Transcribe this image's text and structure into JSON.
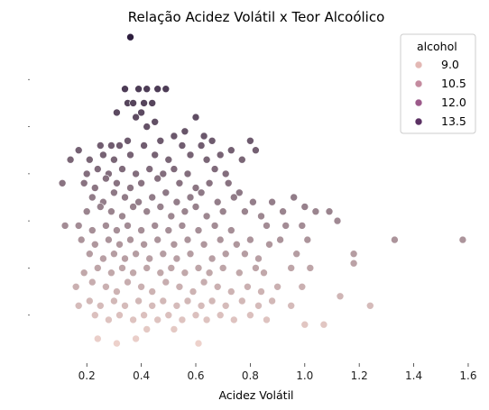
{
  "chart_data": {
    "type": "scatter",
    "title": "Relação Acidez Volátil x Teor Alcoólico",
    "xlabel": "Acidez Volátil",
    "ylabel": "",
    "xlim": [
      0.08,
      1.62
    ],
    "ylim": [
      8.0,
      15.0
    ],
    "x_ticks": [
      "0.2",
      "0.4",
      "0.6",
      "0.8",
      "1.0",
      "1.2",
      "1.4",
      "1.6"
    ],
    "y_ticks_labeled": false,
    "grid": false,
    "hue": "alcohol",
    "color_low": "#edd1cb",
    "color_high": "#2d1e3e",
    "hue_range": [
      8.4,
      14.9
    ],
    "legend": {
      "position": "top-right",
      "title": "alcohol",
      "entries": [
        {
          "label": "9.0",
          "value": 9.0,
          "color": "#e3b8b4"
        },
        {
          "label": "10.5",
          "value": 10.5,
          "color": "#c48b9f"
        },
        {
          "label": "12.0",
          "value": 12.0,
          "color": "#9c5a8a"
        },
        {
          "label": "13.5",
          "value": 13.5,
          "color": "#5b3163"
        }
      ]
    },
    "points": [
      [
        0.36,
        14.9
      ],
      [
        0.24,
        8.5
      ],
      [
        0.31,
        8.4
      ],
      [
        0.38,
        8.5
      ],
      [
        0.42,
        8.7
      ],
      [
        0.52,
        8.7
      ],
      [
        0.61,
        8.4
      ],
      [
        0.39,
        13.8
      ],
      [
        0.42,
        13.8
      ],
      [
        0.46,
        13.8
      ],
      [
        0.49,
        13.8
      ],
      [
        0.34,
        13.8
      ],
      [
        0.35,
        13.5
      ],
      [
        0.37,
        13.5
      ],
      [
        0.41,
        13.5
      ],
      [
        0.44,
        13.5
      ],
      [
        0.31,
        13.3
      ],
      [
        0.38,
        13.2
      ],
      [
        0.4,
        13.3
      ],
      [
        0.45,
        13.1
      ],
      [
        0.6,
        13.2
      ],
      [
        0.42,
        13.0
      ],
      [
        0.52,
        12.8
      ],
      [
        0.56,
        12.9
      ],
      [
        0.63,
        12.8
      ],
      [
        0.17,
        12.5
      ],
      [
        0.25,
        12.6
      ],
      [
        0.29,
        12.6
      ],
      [
        0.32,
        12.6
      ],
      [
        0.35,
        12.7
      ],
      [
        0.41,
        12.6
      ],
      [
        0.47,
        12.7
      ],
      [
        0.55,
        12.6
      ],
      [
        0.62,
        12.6
      ],
      [
        0.66,
        12.7
      ],
      [
        0.73,
        12.5
      ],
      [
        0.8,
        12.7
      ],
      [
        0.82,
        12.5
      ],
      [
        0.14,
        12.3
      ],
      [
        0.21,
        12.3
      ],
      [
        0.26,
        12.4
      ],
      [
        0.3,
        12.3
      ],
      [
        0.36,
        12.4
      ],
      [
        0.45,
        12.4
      ],
      [
        0.5,
        12.3
      ],
      [
        0.58,
        12.4
      ],
      [
        0.64,
        12.3
      ],
      [
        0.69,
        12.4
      ],
      [
        0.77,
        12.3
      ],
      [
        0.2,
        12.0
      ],
      [
        0.24,
        12.1
      ],
      [
        0.28,
        12.0
      ],
      [
        0.33,
        12.1
      ],
      [
        0.38,
        12.0
      ],
      [
        0.43,
        12.1
      ],
      [
        0.48,
        12.0
      ],
      [
        0.52,
        12.1
      ],
      [
        0.57,
        12.0
      ],
      [
        0.67,
        12.1
      ],
      [
        0.71,
        12.0
      ],
      [
        0.11,
        11.8
      ],
      [
        0.19,
        11.8
      ],
      [
        0.23,
        11.7
      ],
      [
        0.27,
        11.9
      ],
      [
        0.31,
        11.8
      ],
      [
        0.36,
        11.7
      ],
      [
        0.4,
        11.8
      ],
      [
        0.46,
        11.9
      ],
      [
        0.54,
        11.8
      ],
      [
        0.6,
        11.7
      ],
      [
        0.65,
        11.8
      ],
      [
        0.72,
        11.8
      ],
      [
        0.76,
        11.6
      ],
      [
        0.22,
        11.5
      ],
      [
        0.26,
        11.4
      ],
      [
        0.3,
        11.6
      ],
      [
        0.34,
        11.5
      ],
      [
        0.39,
        11.4
      ],
      [
        0.44,
        11.5
      ],
      [
        0.49,
        11.6
      ],
      [
        0.53,
        11.4
      ],
      [
        0.58,
        11.5
      ],
      [
        0.62,
        11.6
      ],
      [
        0.68,
        11.4
      ],
      [
        0.74,
        11.5
      ],
      [
        0.81,
        11.4
      ],
      [
        0.88,
        11.4
      ],
      [
        0.96,
        11.5
      ],
      [
        0.2,
        11.2
      ],
      [
        0.25,
        11.3
      ],
      [
        0.29,
        11.2
      ],
      [
        0.33,
        11.1
      ],
      [
        0.37,
        11.3
      ],
      [
        0.42,
        11.2
      ],
      [
        0.47,
        11.3
      ],
      [
        0.51,
        11.1
      ],
      [
        0.56,
        11.2
      ],
      [
        0.6,
        11.3
      ],
      [
        0.64,
        11.1
      ],
      [
        0.7,
        11.2
      ],
      [
        0.78,
        11.2
      ],
      [
        0.84,
        11.1
      ],
      [
        0.92,
        11.2
      ],
      [
        1.0,
        11.3
      ],
      [
        1.04,
        11.2
      ],
      [
        1.09,
        11.2
      ],
      [
        0.12,
        10.9
      ],
      [
        0.17,
        10.9
      ],
      [
        0.22,
        10.8
      ],
      [
        0.27,
        10.9
      ],
      [
        0.31,
        10.8
      ],
      [
        0.35,
        10.9
      ],
      [
        0.4,
        10.8
      ],
      [
        0.45,
        10.9
      ],
      [
        0.5,
        10.8
      ],
      [
        0.55,
        10.9
      ],
      [
        0.61,
        10.8
      ],
      [
        0.67,
        10.9
      ],
      [
        0.73,
        10.8
      ],
      [
        0.86,
        10.9
      ],
      [
        0.93,
        10.9
      ],
      [
        0.99,
        10.9
      ],
      [
        1.12,
        11.0
      ],
      [
        0.18,
        10.6
      ],
      [
        0.23,
        10.5
      ],
      [
        0.28,
        10.6
      ],
      [
        0.32,
        10.5
      ],
      [
        0.36,
        10.6
      ],
      [
        0.41,
        10.5
      ],
      [
        0.46,
        10.6
      ],
      [
        0.52,
        10.5
      ],
      [
        0.57,
        10.6
      ],
      [
        0.63,
        10.5
      ],
      [
        0.69,
        10.6
      ],
      [
        0.75,
        10.5
      ],
      [
        0.8,
        10.6
      ],
      [
        0.87,
        10.5
      ],
      [
        0.91,
        10.6
      ],
      [
        0.21,
        10.3
      ],
      [
        0.26,
        10.2
      ],
      [
        0.3,
        10.3
      ],
      [
        0.34,
        10.2
      ],
      [
        0.38,
        10.3
      ],
      [
        0.43,
        10.2
      ],
      [
        0.48,
        10.3
      ],
      [
        0.53,
        10.2
      ],
      [
        0.58,
        10.3
      ],
      [
        0.66,
        10.2
      ],
      [
        0.71,
        10.3
      ],
      [
        0.78,
        10.3
      ],
      [
        0.83,
        10.2
      ],
      [
        0.97,
        10.3
      ],
      [
        1.01,
        10.6
      ],
      [
        1.18,
        10.3
      ],
      [
        1.33,
        10.6
      ],
      [
        1.58,
        10.6
      ],
      [
        0.19,
        9.9
      ],
      [
        0.24,
        10.0
      ],
      [
        0.29,
        9.9
      ],
      [
        0.33,
        10.0
      ],
      [
        0.37,
        9.9
      ],
      [
        0.42,
        10.0
      ],
      [
        0.47,
        9.9
      ],
      [
        0.51,
        10.0
      ],
      [
        0.56,
        9.9
      ],
      [
        0.61,
        10.0
      ],
      [
        0.65,
        9.9
      ],
      [
        0.7,
        10.0
      ],
      [
        0.76,
        9.9
      ],
      [
        0.82,
        10.0
      ],
      [
        0.85,
        9.9
      ],
      [
        0.95,
        10.0
      ],
      [
        1.02,
        10.0
      ],
      [
        1.18,
        10.1
      ],
      [
        0.16,
        9.6
      ],
      [
        0.22,
        9.7
      ],
      [
        0.27,
        9.6
      ],
      [
        0.31,
        9.5
      ],
      [
        0.35,
        9.7
      ],
      [
        0.4,
        9.6
      ],
      [
        0.44,
        9.5
      ],
      [
        0.49,
        9.7
      ],
      [
        0.54,
        9.6
      ],
      [
        0.59,
        9.5
      ],
      [
        0.63,
        9.7
      ],
      [
        0.68,
        9.6
      ],
      [
        0.73,
        9.5
      ],
      [
        0.79,
        9.6
      ],
      [
        0.84,
        9.5
      ],
      [
        0.9,
        9.6
      ],
      [
        0.99,
        9.6
      ],
      [
        1.13,
        9.4
      ],
      [
        0.17,
        9.2
      ],
      [
        0.21,
        9.3
      ],
      [
        0.25,
        9.2
      ],
      [
        0.3,
        9.3
      ],
      [
        0.34,
        9.2
      ],
      [
        0.39,
        9.3
      ],
      [
        0.44,
        9.2
      ],
      [
        0.48,
        9.3
      ],
      [
        0.53,
        9.2
      ],
      [
        0.57,
        9.3
      ],
      [
        0.62,
        9.2
      ],
      [
        0.66,
        9.3
      ],
      [
        0.71,
        9.2
      ],
      [
        0.77,
        9.3
      ],
      [
        0.83,
        9.2
      ],
      [
        0.88,
        9.3
      ],
      [
        0.95,
        9.2
      ],
      [
        1.24,
        9.2
      ],
      [
        0.23,
        9.0
      ],
      [
        0.28,
        8.9
      ],
      [
        0.32,
        9.0
      ],
      [
        0.37,
        8.9
      ],
      [
        0.41,
        9.0
      ],
      [
        0.46,
        8.9
      ],
      [
        0.5,
        9.0
      ],
      [
        0.55,
        8.9
      ],
      [
        0.6,
        9.0
      ],
      [
        0.64,
        8.9
      ],
      [
        0.69,
        9.0
      ],
      [
        0.74,
        8.9
      ],
      [
        0.8,
        9.0
      ],
      [
        0.86,
        8.9
      ],
      [
        1.0,
        8.8
      ],
      [
        1.07,
        8.8
      ]
    ]
  }
}
